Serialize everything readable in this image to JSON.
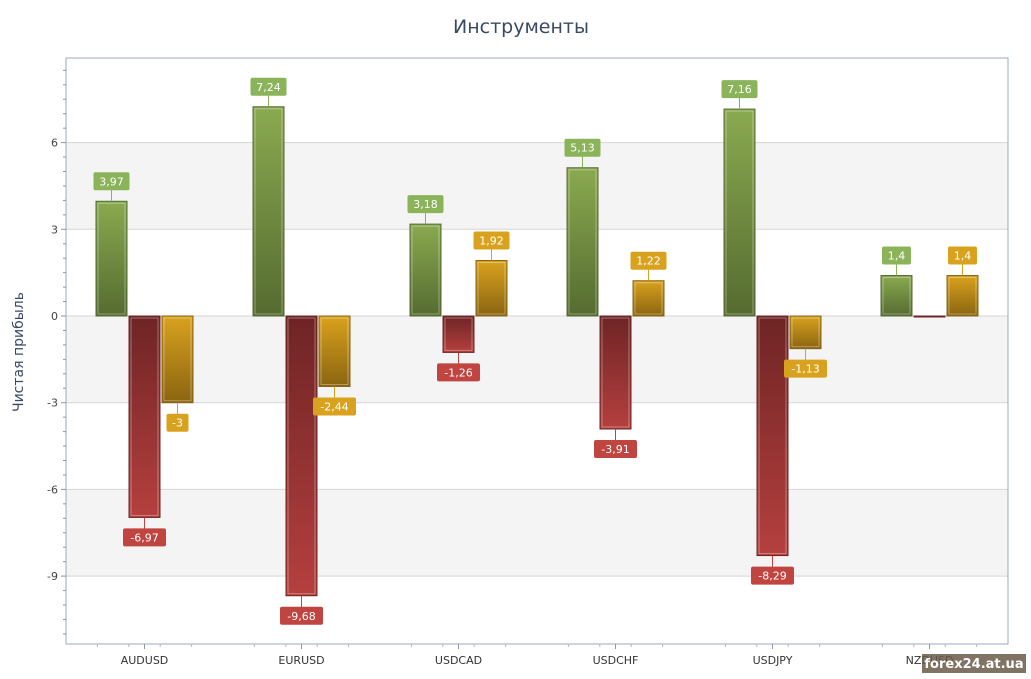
{
  "chart_data": {
    "type": "bar",
    "title": "Инструменты",
    "xlabel": "",
    "ylabel": "Чистая прибыль",
    "categories": [
      "AUDUSD",
      "EURUSD",
      "USDCAD",
      "USDCHF",
      "USDJPY",
      "NZDUSD"
    ],
    "series": [
      {
        "values": [
          3.97,
          7.24,
          3.18,
          5.13,
          7.16,
          1.4
        ],
        "labels": [
          "3,97",
          "7,24",
          "3,18",
          "5,13",
          "7,16",
          "1,4"
        ]
      },
      {
        "values": [
          -6.97,
          -9.68,
          -1.26,
          -3.91,
          -8.29,
          0
        ],
        "labels": [
          "-6,97",
          "-9,68",
          "-1,26",
          "-3,91",
          "-8,29",
          ""
        ]
      },
      {
        "values": [
          -3,
          -2.44,
          1.92,
          1.22,
          -1.13,
          1.4
        ],
        "labels": [
          "-3",
          "-2,44",
          "1,92",
          "1,22",
          "-1,13",
          "1,4"
        ]
      }
    ],
    "ylim": [
      -11,
      9
    ],
    "yticks": [
      6,
      3,
      0,
      -3,
      -6,
      -9
    ],
    "ytick_labels": [
      "6",
      "3",
      "0",
      "-3",
      "-6",
      "-9"
    ],
    "grid": true,
    "legend": "none"
  },
  "colors": {
    "series": [
      "#8aaa50",
      "#b5403f",
      "#d9a21e"
    ],
    "series_dark": [
      "#556b30",
      "#6e2424",
      "#8a6410"
    ],
    "label_bg": [
      "#8ab35a",
      "#c0443f",
      "#d9a21e"
    ],
    "band": "#f4f4f4",
    "frame": "#9aa8c0"
  },
  "watermark": "forex24.at.ua"
}
